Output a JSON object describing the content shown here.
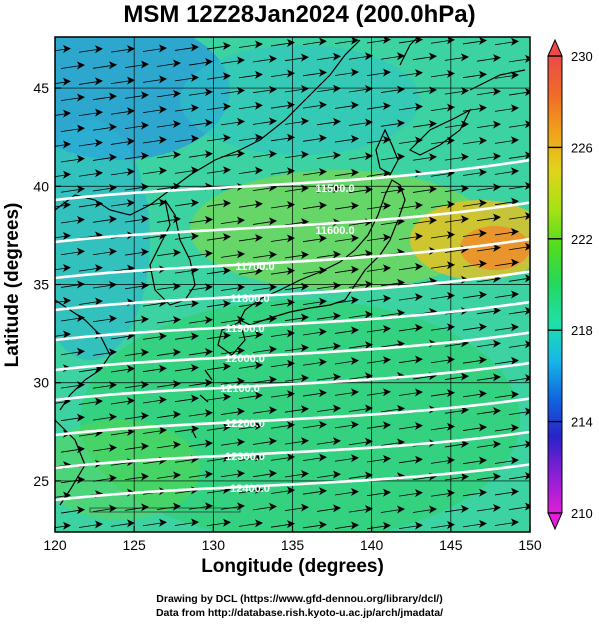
{
  "title": "MSM 12Z28Jan2024 (200.0hPa)",
  "map": {
    "xlabel": "Longitude (degrees)",
    "ylabel": "Latitude  (degrees)",
    "lon_ticks": [
      "120",
      "125",
      "130",
      "135",
      "140",
      "145",
      "150"
    ],
    "lat_ticks": [
      "25",
      "30",
      "35",
      "40",
      "45"
    ],
    "lon_range": [
      120,
      150
    ],
    "lat_range": [
      22.4,
      47.6
    ],
    "contour_labels": [
      "11500.0",
      "11600.0",
      "11700.0",
      "11800.0",
      "11900.0",
      "12000.0",
      "12100.0",
      "12200.0",
      "12300.0",
      "12400.0"
    ],
    "colorbar": {
      "ticks": [
        "230",
        "226",
        "222",
        "218",
        "214",
        "210"
      ],
      "range": [
        210,
        230
      ],
      "colors": [
        "#e01fd6",
        "#8a1fd6",
        "#2a22c8",
        "#1066e0",
        "#16b7e8",
        "#1ee0a8",
        "#24d860",
        "#52dc1e",
        "#a8e214",
        "#e0d41c",
        "#f0a21a",
        "#f06a28",
        "#ec4a4a"
      ]
    },
    "grid": true,
    "streamlines": true
  },
  "credits": {
    "line1": "Drawing by DCL (https://www.gfd-dennou.org/library/dcl/)",
    "line2": "Data from http://database.rish.kyoto-u.ac.jp/arch/jmadata/"
  }
}
